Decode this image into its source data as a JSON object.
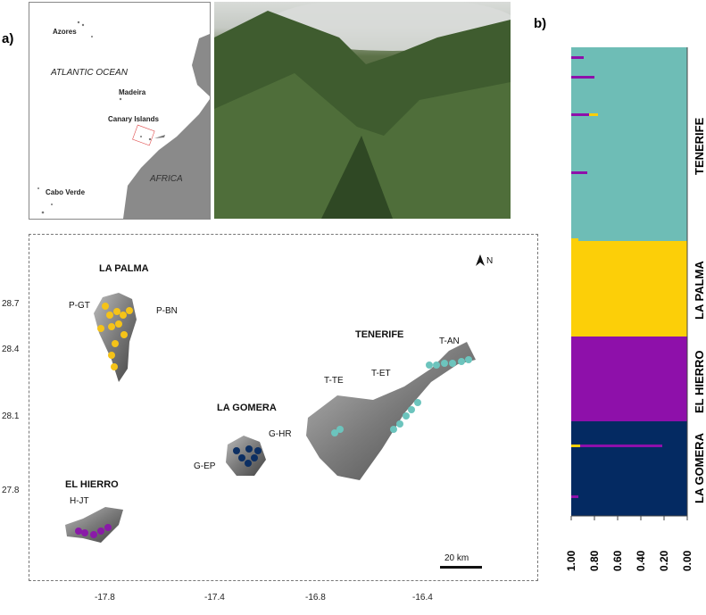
{
  "panel_a_label": "a)",
  "panel_b_label": "b)",
  "inset": {
    "labels": [
      "Azores",
      "ATLANTIC OCEAN",
      "Madeira",
      "Canary Islands",
      "AFRICA",
      "Cabo Verde"
    ]
  },
  "map": {
    "islands": [
      "LA PALMA",
      "TENERIFE",
      "LA GOMERA",
      "EL HIERRO"
    ],
    "sites": [
      "P-GT",
      "P-BN",
      "T-AN",
      "T-ET",
      "T-TE",
      "G-HR",
      "G-EP",
      "H-JT"
    ],
    "y_ticks": [
      "28.7",
      "28.4",
      "28.1",
      "27.8"
    ],
    "x_ticks": [
      "-17.8",
      "-17.4",
      "-16.8",
      "-16.4"
    ],
    "north": "N",
    "scale": "20 km",
    "colors": {
      "la_palma": "#f5c318",
      "tenerife": "#6cc4bd",
      "la_gomera": "#0c2f63",
      "el_hierro": "#8a1aa8"
    }
  },
  "chart_data": {
    "type": "bar",
    "orientation": "horizontal-stacked",
    "groups": [
      {
        "name": "TENERIFE",
        "color": "#6ebdb6"
      },
      {
        "name": "LA PALMA",
        "color": "#fccf08"
      },
      {
        "name": "EL HIERRO",
        "color": "#8e10aa"
      },
      {
        "name": "LA GOMERA",
        "color": "#042a62"
      }
    ],
    "x_ticks": [
      "1.00",
      "0.80",
      "0.60",
      "0.40",
      "0.20",
      "0.00"
    ],
    "xlim": [
      1,
      0
    ]
  }
}
